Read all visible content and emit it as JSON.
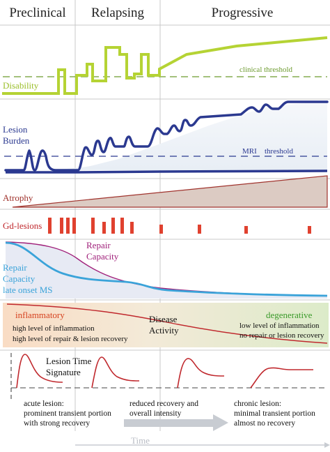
{
  "header": {
    "phases": [
      "Preclinical",
      "Relapsing",
      "Progressive"
    ]
  },
  "panels": {
    "disability": {
      "label": "Disability",
      "threshold_label": "clinical threshold"
    },
    "lesion_burden": {
      "label_line1": "Lesion",
      "label_line2": "Burden",
      "threshold_label_a": "MRI",
      "threshold_label_b": "threshold"
    },
    "atrophy": {
      "label": "Atrophy"
    },
    "gd_lesions": {
      "label": "Gd-lesions"
    },
    "repair": {
      "repair_capacity_line1": "Repair",
      "repair_capacity_line2": "Capacity",
      "late_onset_line1": "Repair",
      "late_onset_line2": "Capacity",
      "late_onset_line3": "late onset MS"
    },
    "disease_activity": {
      "inflammatory_title": "inflammatory",
      "inflammatory_line1": "high level of inflammation",
      "inflammatory_line2": "high level of repair & lesion recovery",
      "center_line1": "Disease",
      "center_line2": "Activity",
      "degenerative_title": "degenerative",
      "degenerative_line1": "low level of inflammation",
      "degenerative_line2": "no repair or lesion recovery"
    },
    "lesion_time_signature": {
      "title_line1": "Lesion Time",
      "title_line2": "Signature",
      "acute_line1": "acute lesion:",
      "acute_line2": "prominent transient portion",
      "acute_line3": "with strong recovery",
      "reduced_line1": "reduced recovery and",
      "reduced_line2": "overall intensity",
      "chronic_line1": "chronic lesion:",
      "chronic_line2": "minimal transient portion",
      "chronic_line3": "almost no recovery"
    }
  },
  "axis": {
    "time_label": "Time"
  },
  "colors": {
    "disability": "#b5d334",
    "disability_dashed": "#6c9a2e",
    "lesion": "#2b3990",
    "lesion_fill": "#eef2f8",
    "atrophy": "#a0332d",
    "atrophy_fill": "#d9c9c2",
    "gd": "#e0412f",
    "repair_magenta": "#a0207a",
    "repair_cyan": "#3aa3d9",
    "inflammatory": "#d6411e",
    "degenerative": "#3a9a2a",
    "signature": "#c0282d",
    "arrow": "#c8ccd2"
  }
}
